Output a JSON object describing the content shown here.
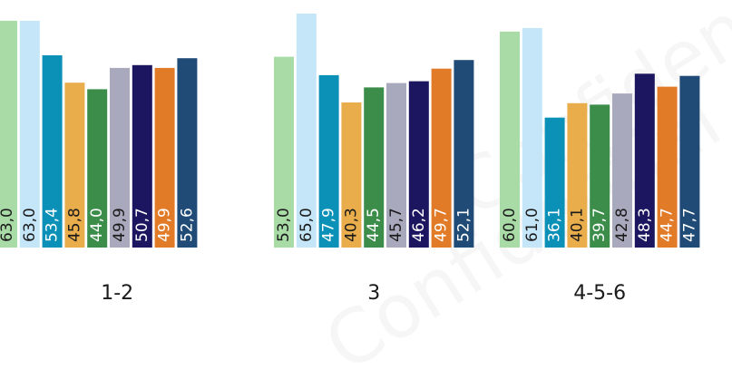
{
  "watermark": [
    "Confidential",
    "Confidential"
  ],
  "chart_data": {
    "type": "bar",
    "categories": [
      "1-2",
      "3",
      "4-5-6"
    ],
    "series": [
      {
        "color": "#a9dba6",
        "values": [
          63.0,
          53.0,
          60.0
        ]
      },
      {
        "color": "#c5e6f8",
        "values": [
          63.0,
          65.0,
          61.0
        ]
      },
      {
        "color": "#0b90b8",
        "values": [
          53.4,
          47.9,
          36.1
        ]
      },
      {
        "color": "#e9ad4c",
        "values": [
          45.8,
          40.3,
          40.1
        ]
      },
      {
        "color": "#3b8d49",
        "values": [
          44.0,
          44.5,
          39.7
        ]
      },
      {
        "color": "#a9a9bd",
        "values": [
          49.9,
          45.7,
          42.8
        ]
      },
      {
        "color": "#1c1660",
        "values": [
          50.7,
          46.2,
          48.3
        ]
      },
      {
        "color": "#e17b28",
        "values": [
          49.9,
          49.7,
          44.7
        ]
      },
      {
        "color": "#1f4b76",
        "values": [
          52.6,
          52.1,
          47.7
        ]
      }
    ],
    "label_colors": {
      "dark": [
        "#1a1a1a",
        "#1a1a1a",
        "#ffffff",
        "#1a1a1a",
        "#ffffff",
        "#1a1a1a",
        "#ffffff",
        "#ffffff",
        "#ffffff"
      ]
    },
    "decimal_separator": ",",
    "ylim": [
      0,
      65
    ],
    "grid": false,
    "legend": "none"
  }
}
